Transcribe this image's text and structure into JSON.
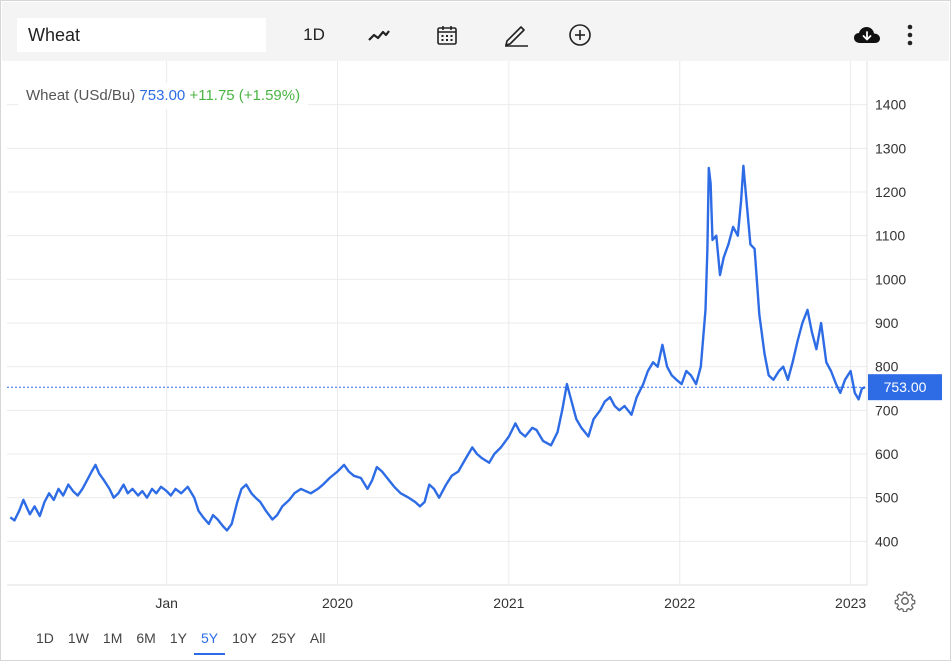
{
  "toolbar": {
    "symbol": "Wheat",
    "interval": "1D",
    "icons": [
      "line-chart-icon",
      "calendar-icon",
      "pencil-icon",
      "add-circle-icon",
      "cloud-download-icon",
      "more-vertical-icon"
    ]
  },
  "legend": {
    "symbol": "Wheat (USd/Bu)",
    "price": "753.00",
    "change": "+11.75 (+1.59%)"
  },
  "range_buttons": [
    "1D",
    "1W",
    "1M",
    "6M",
    "1Y",
    "5Y",
    "10Y",
    "25Y",
    "All"
  ],
  "active_range": "5Y",
  "colors": {
    "line": "#2e6ce6",
    "change_positive": "#4ab543",
    "grid": "#ebebeb",
    "price_tag_bg": "#2e6ce6"
  },
  "chart_data": {
    "type": "line",
    "series": [
      {
        "name": "Wheat (USd/Bu)",
        "points": [
          [
            "2018-02-01",
            455
          ],
          [
            "2018-02-10",
            448
          ],
          [
            "2018-02-20",
            470
          ],
          [
            "2018-03-01",
            495
          ],
          [
            "2018-03-08",
            478
          ],
          [
            "2018-03-15",
            462
          ],
          [
            "2018-03-25",
            480
          ],
          [
            "2018-04-05",
            458
          ],
          [
            "2018-04-15",
            490
          ],
          [
            "2018-04-25",
            510
          ],
          [
            "2018-05-05",
            495
          ],
          [
            "2018-05-15",
            520
          ],
          [
            "2018-05-25",
            505
          ],
          [
            "2018-06-05",
            530
          ],
          [
            "2018-06-15",
            515
          ],
          [
            "2018-06-25",
            505
          ],
          [
            "2018-07-05",
            520
          ],
          [
            "2018-07-15",
            540
          ],
          [
            "2018-07-25",
            560
          ],
          [
            "2018-08-02",
            575
          ],
          [
            "2018-08-10",
            555
          ],
          [
            "2018-08-20",
            540
          ],
          [
            "2018-09-01",
            520
          ],
          [
            "2018-09-10",
            500
          ],
          [
            "2018-09-20",
            510
          ],
          [
            "2018-10-01",
            530
          ],
          [
            "2018-10-10",
            510
          ],
          [
            "2018-10-20",
            520
          ],
          [
            "2018-11-01",
            505
          ],
          [
            "2018-11-10",
            515
          ],
          [
            "2018-11-20",
            500
          ],
          [
            "2018-12-01",
            520
          ],
          [
            "2018-12-10",
            510
          ],
          [
            "2018-12-20",
            525
          ],
          [
            "2019-01-01",
            515
          ],
          [
            "2019-01-10",
            505
          ],
          [
            "2019-01-20",
            520
          ],
          [
            "2019-02-01",
            510
          ],
          [
            "2019-02-15",
            525
          ],
          [
            "2019-03-01",
            500
          ],
          [
            "2019-03-10",
            470
          ],
          [
            "2019-03-20",
            455
          ],
          [
            "2019-04-01",
            440
          ],
          [
            "2019-04-10",
            460
          ],
          [
            "2019-04-20",
            450
          ],
          [
            "2019-05-01",
            435
          ],
          [
            "2019-05-10",
            425
          ],
          [
            "2019-05-20",
            440
          ],
          [
            "2019-06-01",
            490
          ],
          [
            "2019-06-10",
            520
          ],
          [
            "2019-06-20",
            530
          ],
          [
            "2019-07-01",
            510
          ],
          [
            "2019-07-10",
            500
          ],
          [
            "2019-07-20",
            490
          ],
          [
            "2019-08-01",
            470
          ],
          [
            "2019-08-15",
            450
          ],
          [
            "2019-08-25",
            460
          ],
          [
            "2019-09-05",
            480
          ],
          [
            "2019-09-20",
            495
          ],
          [
            "2019-10-01",
            510
          ],
          [
            "2019-10-15",
            520
          ],
          [
            "2019-10-25",
            515
          ],
          [
            "2019-11-05",
            510
          ],
          [
            "2019-11-20",
            520
          ],
          [
            "2019-12-01",
            530
          ],
          [
            "2019-12-15",
            545
          ],
          [
            "2020-01-01",
            560
          ],
          [
            "2020-01-15",
            575
          ],
          [
            "2020-01-25",
            560
          ],
          [
            "2020-02-05",
            550
          ],
          [
            "2020-02-20",
            545
          ],
          [
            "2020-03-05",
            520
          ],
          [
            "2020-03-15",
            540
          ],
          [
            "2020-03-25",
            570
          ],
          [
            "2020-04-05",
            560
          ],
          [
            "2020-04-20",
            540
          ],
          [
            "2020-05-01",
            525
          ],
          [
            "2020-05-15",
            510
          ],
          [
            "2020-06-01",
            500
          ],
          [
            "2020-06-15",
            490
          ],
          [
            "2020-06-25",
            480
          ],
          [
            "2020-07-05",
            490
          ],
          [
            "2020-07-15",
            530
          ],
          [
            "2020-07-25",
            520
          ],
          [
            "2020-08-05",
            500
          ],
          [
            "2020-08-20",
            530
          ],
          [
            "2020-09-01",
            550
          ],
          [
            "2020-09-15",
            560
          ],
          [
            "2020-10-01",
            590
          ],
          [
            "2020-10-15",
            615
          ],
          [
            "2020-10-25",
            600
          ],
          [
            "2020-11-05",
            590
          ],
          [
            "2020-11-20",
            580
          ],
          [
            "2020-12-01",
            600
          ],
          [
            "2020-12-15",
            615
          ],
          [
            "2021-01-01",
            640
          ],
          [
            "2021-01-15",
            670
          ],
          [
            "2021-01-25",
            650
          ],
          [
            "2021-02-05",
            640
          ],
          [
            "2021-02-20",
            660
          ],
          [
            "2021-03-01",
            655
          ],
          [
            "2021-03-15",
            630
          ],
          [
            "2021-04-01",
            620
          ],
          [
            "2021-04-15",
            650
          ],
          [
            "2021-04-25",
            700
          ],
          [
            "2021-05-05",
            760
          ],
          [
            "2021-05-15",
            720
          ],
          [
            "2021-05-25",
            680
          ],
          [
            "2021-06-05",
            660
          ],
          [
            "2021-06-20",
            640
          ],
          [
            "2021-07-01",
            680
          ],
          [
            "2021-07-15",
            700
          ],
          [
            "2021-07-25",
            720
          ],
          [
            "2021-08-05",
            730
          ],
          [
            "2021-08-15",
            710
          ],
          [
            "2021-08-25",
            700
          ],
          [
            "2021-09-05",
            710
          ],
          [
            "2021-09-20",
            690
          ],
          [
            "2021-10-01",
            730
          ],
          [
            "2021-10-15",
            760
          ],
          [
            "2021-10-25",
            790
          ],
          [
            "2021-11-05",
            810
          ],
          [
            "2021-11-15",
            800
          ],
          [
            "2021-11-25",
            850
          ],
          [
            "2021-12-05",
            800
          ],
          [
            "2021-12-15",
            780
          ],
          [
            "2021-12-25",
            770
          ],
          [
            "2022-01-05",
            760
          ],
          [
            "2022-01-15",
            790
          ],
          [
            "2022-01-25",
            780
          ],
          [
            "2022-02-05",
            760
          ],
          [
            "2022-02-15",
            800
          ],
          [
            "2022-02-25",
            930
          ],
          [
            "2022-03-01",
            1070
          ],
          [
            "2022-03-04",
            1255
          ],
          [
            "2022-03-08",
            1220
          ],
          [
            "2022-03-12",
            1090
          ],
          [
            "2022-03-20",
            1100
          ],
          [
            "2022-03-28",
            1010
          ],
          [
            "2022-04-05",
            1050
          ],
          [
            "2022-04-15",
            1080
          ],
          [
            "2022-04-25",
            1120
          ],
          [
            "2022-05-05",
            1100
          ],
          [
            "2022-05-12",
            1180
          ],
          [
            "2022-05-17",
            1260
          ],
          [
            "2022-05-22",
            1200
          ],
          [
            "2022-06-01",
            1080
          ],
          [
            "2022-06-10",
            1070
          ],
          [
            "2022-06-20",
            920
          ],
          [
            "2022-07-01",
            830
          ],
          [
            "2022-07-10",
            780
          ],
          [
            "2022-07-20",
            770
          ],
          [
            "2022-08-01",
            790
          ],
          [
            "2022-08-10",
            800
          ],
          [
            "2022-08-20",
            770
          ],
          [
            "2022-08-30",
            810
          ],
          [
            "2022-09-10",
            860
          ],
          [
            "2022-09-20",
            900
          ],
          [
            "2022-10-01",
            930
          ],
          [
            "2022-10-10",
            880
          ],
          [
            "2022-10-20",
            840
          ],
          [
            "2022-10-30",
            900
          ],
          [
            "2022-11-10",
            810
          ],
          [
            "2022-11-20",
            790
          ],
          [
            "2022-12-01",
            760
          ],
          [
            "2022-12-10",
            740
          ],
          [
            "2022-12-20",
            770
          ],
          [
            "2023-01-01",
            790
          ],
          [
            "2023-01-10",
            740
          ],
          [
            "2023-01-18",
            725
          ],
          [
            "2023-01-25",
            750
          ],
          [
            "2023-02-01",
            753
          ]
        ]
      }
    ],
    "xticks": [
      {
        "date": "2019-01-01",
        "label": "Jan"
      },
      {
        "date": "2020-01-01",
        "label": "2020"
      },
      {
        "date": "2021-01-01",
        "label": "2021"
      },
      {
        "date": "2022-01-01",
        "label": "2022"
      },
      {
        "date": "2023-01-01",
        "label": "2023"
      }
    ],
    "yticks": [
      400,
      500,
      600,
      700,
      800,
      900,
      1000,
      1100,
      1200,
      1300,
      1400
    ],
    "ylim": [
      300,
      1500
    ],
    "xlim": [
      "2018-01-25",
      "2023-02-05"
    ],
    "last_price": 753.0,
    "last_price_label": "753.00",
    "grid": true
  }
}
